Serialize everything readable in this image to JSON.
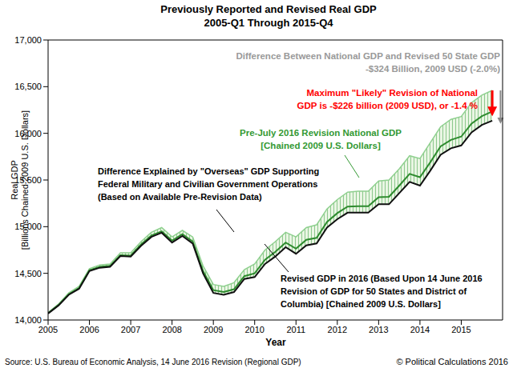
{
  "chart_data": {
    "type": "line",
    "title": [
      "Previously Reported and Revised Real GDP",
      "2005-Q1 Through 2015-Q4"
    ],
    "x_label": "Year",
    "y_label": [
      "Real GDP",
      "[Billions Chained 2009 U.S. Dollars]"
    ],
    "source": "Source: U.S. Bureau of Economic Analysis, 14 June 2016 Revision (Regional GDP)",
    "copyright": "© Political Calculations 2016",
    "xlim": [
      2005,
      2016
    ],
    "xticks": [
      2005,
      2006,
      2007,
      2008,
      2009,
      2010,
      2011,
      2012,
      2013,
      2014,
      2015
    ],
    "ylim": [
      14000,
      17000
    ],
    "yticks": [
      {
        "value": 14000,
        "label": "14,000"
      },
      {
        "value": 14500,
        "label": "14,500"
      },
      {
        "value": 15000,
        "label": "15,000"
      },
      {
        "value": 15500,
        "label": "15,500"
      },
      {
        "value": 16000,
        "label": "16,000"
      },
      {
        "value": 16500,
        "label": "16,500"
      },
      {
        "value": 17000,
        "label": "17,000"
      }
    ],
    "grid": false,
    "x": [
      2005,
      2005.25,
      2005.5,
      2005.75,
      2006,
      2006.25,
      2006.5,
      2006.75,
      2007,
      2007.25,
      2007.5,
      2007.75,
      2008,
      2008.25,
      2008.5,
      2008.75,
      2009,
      2009.25,
      2009.5,
      2009.75,
      2010,
      2010.25,
      2010.5,
      2010.75,
      2011,
      2011.25,
      2011.5,
      2011.75,
      2012,
      2012.25,
      2012.5,
      2012.75,
      2013,
      2013.25,
      2013.5,
      2013.75,
      2014,
      2014.25,
      2014.5,
      2014.75,
      2015,
      2015.25,
      2015.5,
      2015.75
    ],
    "series": [
      {
        "color": "#8fd08f",
        "values": [
          14080,
          14170,
          14290,
          14360,
          14550,
          14590,
          14600,
          14720,
          14720,
          14840,
          14940,
          14990,
          14890,
          14960,
          14890,
          14580,
          14380,
          14360,
          14400,
          14540,
          14600,
          14750,
          14840,
          14940,
          14890,
          14990,
          15020,
          15190,
          15290,
          15370,
          15380,
          15380,
          15490,
          15500,
          15620,
          15760,
          15730,
          15900,
          16070,
          16150,
          16180,
          16330,
          16410,
          16460
        ]
      },
      {
        "color": "#2e8b2e",
        "values": [
          14073,
          14160,
          14276,
          14343,
          14533,
          14570,
          14580,
          14695,
          14690,
          14810,
          14905,
          14950,
          14850,
          14920,
          14840,
          14525,
          14320,
          14300,
          14330,
          14470,
          14500,
          14645,
          14730,
          14830,
          14765,
          14860,
          14880,
          15050,
          15145,
          15215,
          15220,
          15220,
          15315,
          15320,
          15440,
          15565,
          15530,
          15690,
          15860,
          15930,
          15965,
          16105,
          16185,
          16234
        ]
      },
      {
        "color": "#111111",
        "values": [
          14070,
          14155,
          14270,
          14335,
          14525,
          14560,
          14570,
          14685,
          14680,
          14795,
          14890,
          14935,
          14830,
          14900,
          14820,
          14500,
          14290,
          14270,
          14300,
          14440,
          14460,
          14600,
          14680,
          14780,
          14710,
          14800,
          14820,
          14990,
          15080,
          15150,
          15150,
          15150,
          15240,
          15240,
          15360,
          15480,
          15440,
          15600,
          15770,
          15840,
          15870,
          16010,
          16090,
          16136
        ]
      }
    ],
    "annotations": [
      {
        "text": [
          "Difference Between National GDP and Revised 50 State GDP",
          "-$324 Billion, 2009 USD (-2.0%)"
        ],
        "color": "#999999"
      },
      {
        "text": [
          "Maximum \"Likely\" Revision of National",
          "GDP is -$226 billion (2009 USD), or -1.4 %"
        ],
        "color": "#ff0000"
      },
      {
        "text": [
          "Pre-July 2016 Revision National GDP",
          "[Chained 2009 U.S. Dollars]"
        ],
        "color": "#339933"
      },
      {
        "text": [
          "Difference Explained by \"Overseas\" GDP Supporting",
          "Federal Military and Civilian Government Operations",
          "(Based on Available Pre-Revision Data)"
        ],
        "color": "#000000"
      },
      {
        "text": [
          "Revised GDP in 2016 (Based Upon 14 June 2016",
          "Revision of GDP for 50 States and District of",
          "Columbia) [Chained 2009 U.S. Dollars]"
        ],
        "color": "#000000"
      }
    ]
  }
}
